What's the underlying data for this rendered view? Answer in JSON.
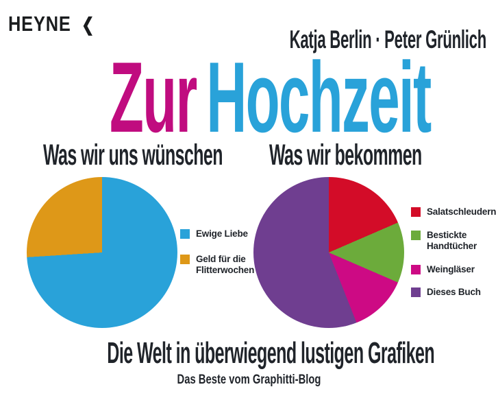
{
  "publisher": {
    "name": "HEYNE",
    "mark": "❮"
  },
  "authors": "Katja Berlin · Peter Grünlich",
  "title": {
    "part1": "Zur",
    "part2": "Hochzeit",
    "part1_color": "#c00c7f",
    "part2_color": "#29a2d9"
  },
  "footer": {
    "tagline": "Die Welt in überwiegend lustigen Grafiken",
    "subtitle": "Das Beste vom Graphitti-Blog"
  },
  "chart_data": [
    {
      "type": "pie",
      "title": "Was wir uns wünschen",
      "labels": [
        "Ewige Liebe",
        "Geld für die Flitterwochen"
      ],
      "values": [
        74,
        26
      ],
      "colors": [
        "#29a2d9",
        "#de9818"
      ],
      "start_angle_deg": 0,
      "direction": "clockwise",
      "legend_position": "right"
    },
    {
      "type": "pie",
      "title": "Was wir bekommen",
      "labels": [
        "Salatschleudern",
        "Bestickte Handtücher",
        "Weingläser",
        "Dieses Buch"
      ],
      "values": [
        18.5,
        13,
        12.5,
        56
      ],
      "colors": [
        "#d30c28",
        "#6cab3b",
        "#cd0a84",
        "#6f3e90"
      ],
      "start_angle_deg": 0,
      "direction": "clockwise",
      "legend_position": "right"
    }
  ]
}
